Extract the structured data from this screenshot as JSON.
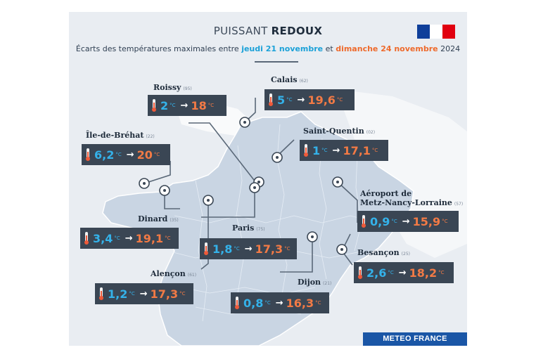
{
  "header": {
    "title_light": "PUISSANT",
    "title_bold": "REDOUX",
    "subtitle_pre": "Écarts des températures maximales entre",
    "subtitle_date1": "jeudi 21 novembre",
    "subtitle_mid": "et",
    "subtitle_date2": "dimanche 24 novembre",
    "subtitle_post": "2024"
  },
  "logo": "flag-icon",
  "footer": "METEO FRANCE",
  "unit": "°C",
  "arrow": "→",
  "colors": {
    "min": "#34b2ea",
    "max": "#f27a45",
    "panel": "#3a4654",
    "brand": "#1a56a6"
  },
  "stations": [
    {
      "name": "Roissy",
      "dept": "(95)",
      "min": "2",
      "max": "18"
    },
    {
      "name": "Calais",
      "dept": "(62)",
      "min": "5",
      "max": "19,6"
    },
    {
      "name": "Saint-Quentin",
      "dept": "(02)",
      "min": "1",
      "max": "17,1"
    },
    {
      "name": "Île-de-Bréhat",
      "dept": "(22)",
      "min": "6,2",
      "max": "20"
    },
    {
      "name": "Aéroport de",
      "name2": "Metz-Nancy-Lorraine",
      "dept": "(57)",
      "min": "0,9",
      "max": "15,9"
    },
    {
      "name": "Dinard",
      "dept": "(35)",
      "min": "3,4",
      "max": "19,1"
    },
    {
      "name": "Paris",
      "dept": "(75)",
      "min": "1,8",
      "max": "17,3"
    },
    {
      "name": "Besançon",
      "dept": "(25)",
      "min": "2,6",
      "max": "18,2"
    },
    {
      "name": "Alençon",
      "dept": "(61)",
      "min": "1,2",
      "max": "17,3"
    },
    {
      "name": "Dijon",
      "dept": "(21)",
      "min": "0,8",
      "max": "16,3"
    }
  ]
}
